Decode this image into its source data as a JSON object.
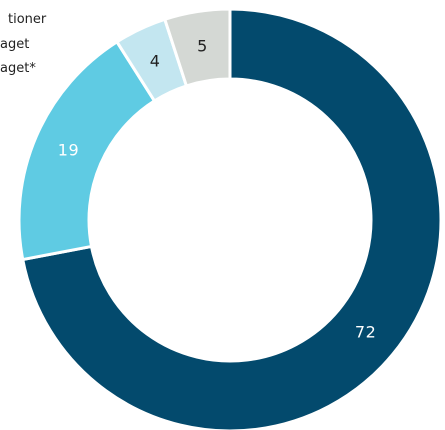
{
  "chart_data": {
    "type": "pie",
    "variant": "donut",
    "title": "",
    "categories": [
      "",
      "",
      "",
      ""
    ],
    "values": [
      72,
      19,
      4,
      5
    ],
    "colors": [
      "#034a6d",
      "#5fcbe3",
      "#c3e6f0",
      "#d4d8d4"
    ],
    "label_colors": [
      "#ffffff",
      "#ffffff",
      "#222222",
      "#222222"
    ],
    "legend_visible_fragments": [
      "tioner",
      "aget",
      "aget*"
    ],
    "legend_position": "top-left (partially cropped)",
    "start": "12 o'clock",
    "direction": "clockwise"
  }
}
